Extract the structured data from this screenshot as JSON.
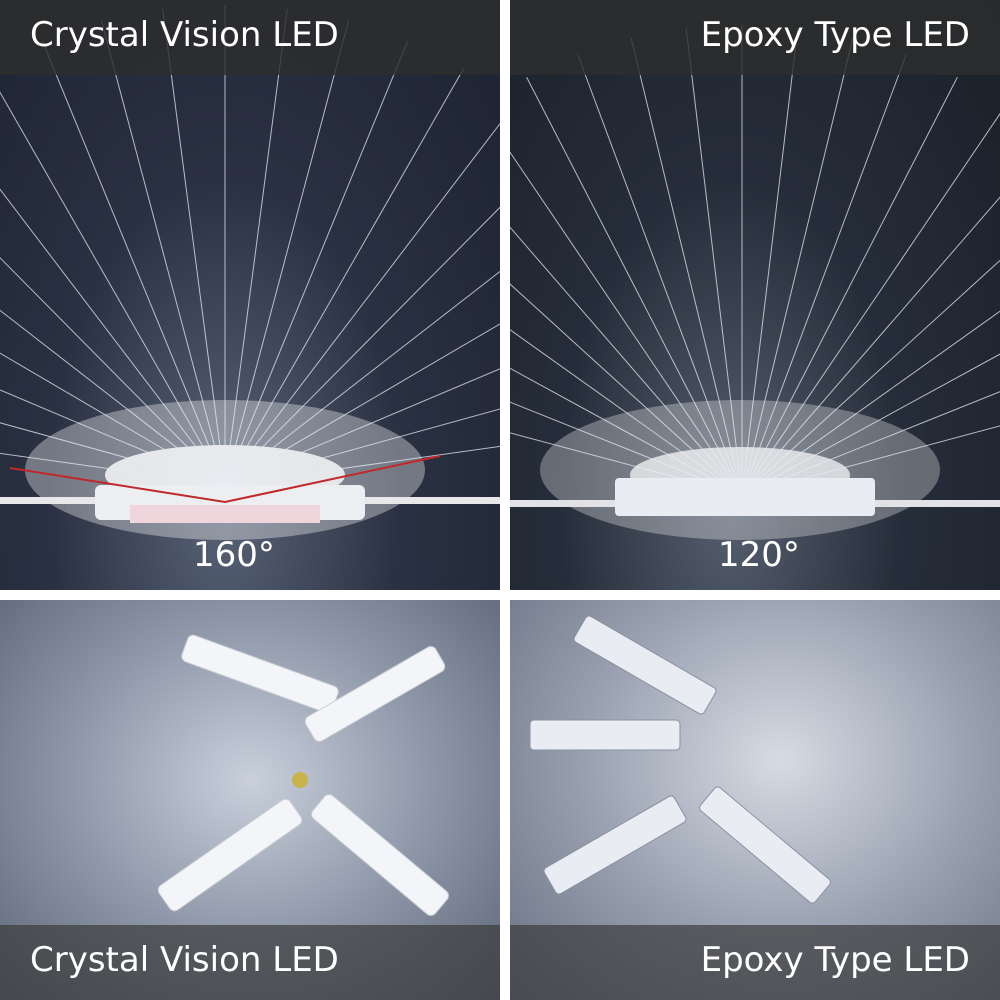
{
  "panels": [
    {
      "title": "Crystal Vision LED",
      "angle": "160°"
    },
    {
      "title": "Epoxy Type LED",
      "angle": "120°"
    },
    {
      "caption": "Crystal Vision LED"
    },
    {
      "caption": "Epoxy Type LED"
    }
  ],
  "colors": {
    "angle_line": "#c0282a",
    "label_bar": "#2d2d2d"
  }
}
